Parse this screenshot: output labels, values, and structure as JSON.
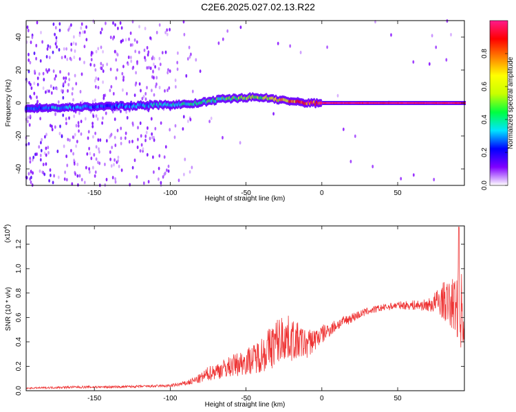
{
  "title": "C2E6.2025.027.02.13.R22",
  "chart_data": [
    {
      "type": "heatmap",
      "xlabel": "Height of straight line (km)",
      "ylabel": "Frequency (Hz)",
      "xlim": [
        -195,
        94
      ],
      "ylim": [
        -50,
        50
      ],
      "x_ticks": [
        -150,
        -100,
        -50,
        0,
        50
      ],
      "y_ticks": [
        -40,
        -20,
        0,
        20,
        40
      ],
      "colorbar": {
        "label": "Normalized spectral amplitude",
        "range": [
          0,
          1
        ],
        "ticks": [
          0.0,
          0.2,
          0.4,
          0.6,
          0.8
        ],
        "tick_labels": [
          "0.0",
          "0.2",
          "0.4",
          "0.6",
          "0.8"
        ],
        "colors": [
          "#ffffff",
          "#8000ff",
          "#0000ff",
          "#00e5ff",
          "#00ff40",
          "#c8ff00",
          "#ffff00",
          "#ff8000",
          "#ff0000",
          "#ff1a8c"
        ]
      },
      "ridge": [
        {
          "x": -178,
          "f": -3,
          "a": 0.4
        },
        {
          "x": -160,
          "f": -2.5,
          "a": 0.3
        },
        {
          "x": -140,
          "f": -2,
          "a": 0.28
        },
        {
          "x": -120,
          "f": -1.5,
          "a": 0.35
        },
        {
          "x": -100,
          "f": -1,
          "a": 0.38
        },
        {
          "x": -85,
          "f": -0.5,
          "a": 0.42
        },
        {
          "x": -75,
          "f": 1,
          "a": 0.45
        },
        {
          "x": -65,
          "f": 2.5,
          "a": 0.5
        },
        {
          "x": -55,
          "f": 3,
          "a": 0.55
        },
        {
          "x": -45,
          "f": 3.5,
          "a": 0.58
        },
        {
          "x": -35,
          "f": 3,
          "a": 0.62
        },
        {
          "x": -28,
          "f": 2,
          "a": 0.7
        },
        {
          "x": -20,
          "f": 1,
          "a": 0.85
        },
        {
          "x": -10,
          "f": 0,
          "a": 0.95
        },
        {
          "x": 0,
          "f": 0,
          "a": 1.0
        },
        {
          "x": 40,
          "f": 0,
          "a": 1.0
        },
        {
          "x": 92,
          "f": 0,
          "a": 1.0
        }
      ]
    },
    {
      "type": "line",
      "xlabel": "Height of straight line (km)",
      "ylabel": "SNR (10 * v/v)",
      "y_multiplier": "(x10",
      "y_multiplier_exp": "4",
      "y_multiplier_close": ")",
      "xlim": [
        -195,
        94
      ],
      "ylim": [
        0,
        1.35
      ],
      "x_ticks": [
        -150,
        -100,
        -50,
        0,
        50
      ],
      "y_ticks": [
        0.0,
        0.2,
        0.4,
        0.6,
        0.8,
        1.0,
        1.2
      ],
      "y_tick_labels": [
        "0.0",
        "0.2",
        "0.4",
        "0.6",
        "0.8",
        "1.0",
        "1.2"
      ],
      "series": [
        {
          "color": "#ee3333",
          "x": [
            -195,
            -180,
            -160,
            -140,
            -120,
            -100,
            -90,
            -80,
            -75,
            -70,
            -65,
            -60,
            -55,
            -50,
            -45,
            -40,
            -35,
            -30,
            -25,
            -20,
            -15,
            -10,
            -5,
            0,
            5,
            10,
            20,
            30,
            40,
            50,
            60,
            70,
            75,
            80,
            85,
            90,
            92,
            94
          ],
          "y": [
            0.02,
            0.025,
            0.03,
            0.03,
            0.035,
            0.04,
            0.06,
            0.1,
            0.14,
            0.16,
            0.18,
            0.2,
            0.22,
            0.24,
            0.26,
            0.3,
            0.34,
            0.4,
            0.44,
            0.42,
            0.4,
            0.38,
            0.42,
            0.46,
            0.5,
            0.54,
            0.6,
            0.65,
            0.68,
            0.7,
            0.7,
            0.7,
            0.72,
            0.74,
            0.7,
            0.72,
            0.65,
            0.62
          ],
          "noise": [
            0.005,
            0.008,
            0.01,
            0.01,
            0.01,
            0.012,
            0.02,
            0.04,
            0.06,
            0.07,
            0.08,
            0.09,
            0.1,
            0.11,
            0.12,
            0.15,
            0.18,
            0.2,
            0.2,
            0.18,
            0.15,
            0.12,
            0.1,
            0.08,
            0.06,
            0.05,
            0.04,
            0.03,
            0.03,
            0.03,
            0.04,
            0.05,
            0.1,
            0.15,
            0.2,
            0.3,
            0.35,
            0.3
          ]
        }
      ]
    }
  ]
}
